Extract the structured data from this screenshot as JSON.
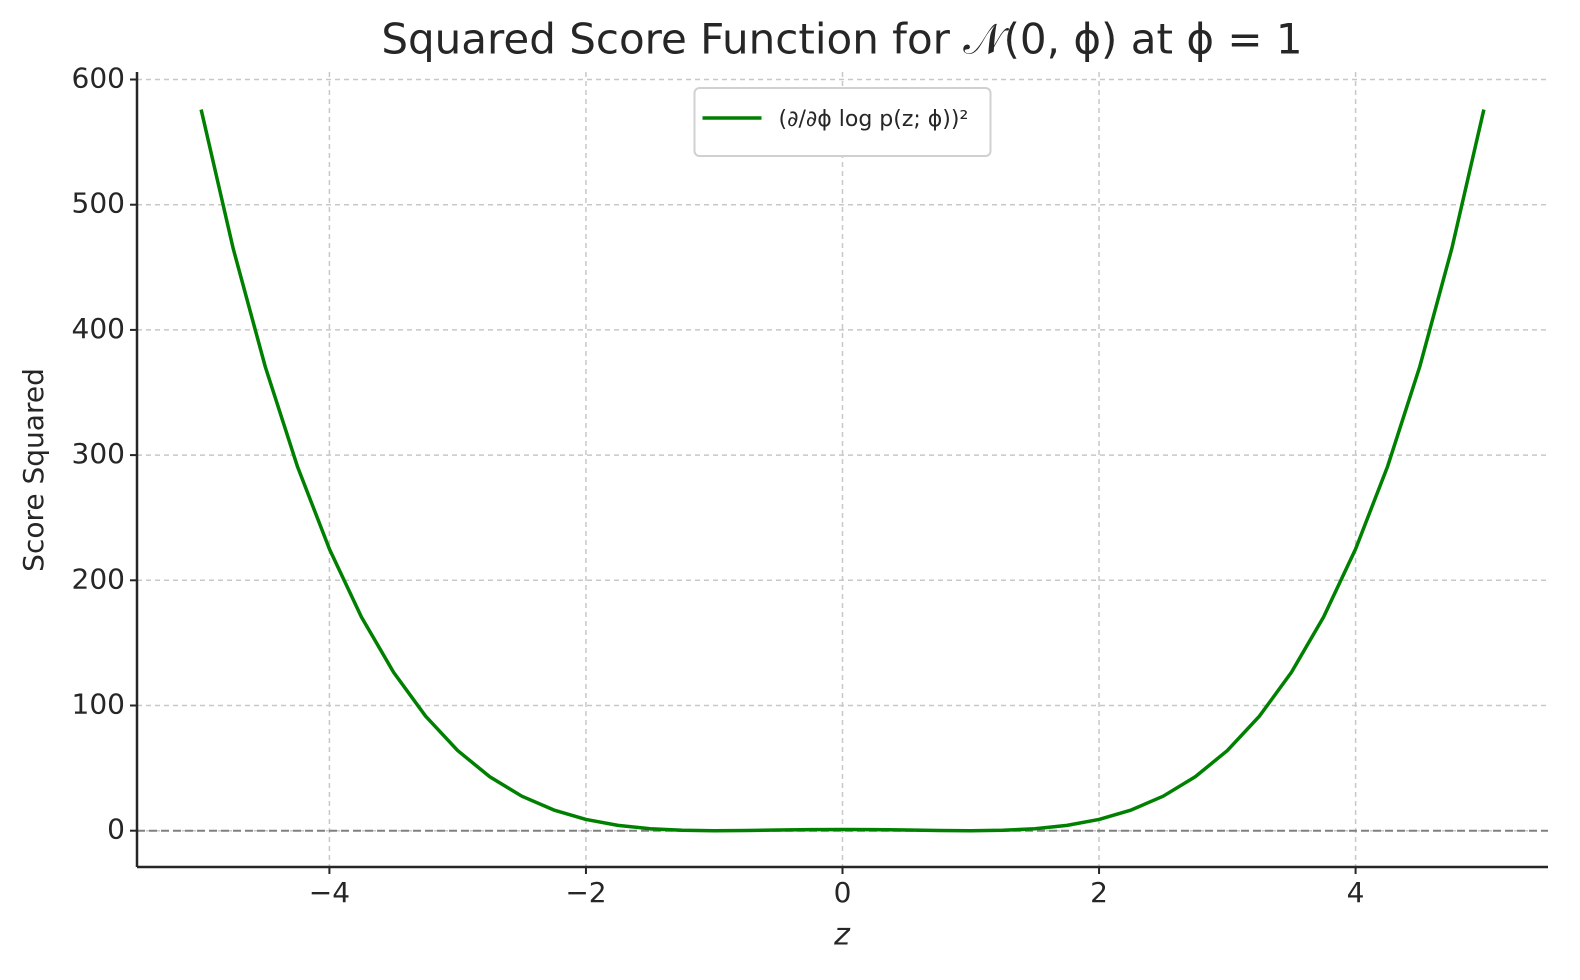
{
  "chart_data": {
    "type": "line",
    "title": "Squared Score Function for 𝒩(0, ϕ) at ϕ = 1",
    "x_label": "z",
    "y_label": "Score Squared",
    "x": [
      -5,
      -4.75,
      -4.5,
      -4.25,
      -4,
      -3.75,
      -3.5,
      -3.25,
      -3,
      -2.75,
      -2.5,
      -2.25,
      -2,
      -1.75,
      -1.5,
      -1.25,
      -1,
      -0.75,
      -0.5,
      -0.25,
      0,
      0.25,
      0.5,
      0.75,
      1,
      1.25,
      1.5,
      1.75,
      2,
      2.25,
      2.5,
      2.75,
      3,
      3.25,
      3.5,
      3.75,
      4,
      4.25,
      4.5,
      4.75,
      5
    ],
    "series": [
      {
        "name": "(∂/∂ϕ log p(z; ϕ))²",
        "color": "#008000",
        "values": [
          576,
          464.94,
          370.56,
          291.13,
          225,
          170.63,
          126.56,
          91.44,
          64,
          43.07,
          27.56,
          16.5,
          9,
          4.25,
          1.56,
          0.32,
          0,
          0.19,
          0.56,
          0.88,
          1,
          0.88,
          0.56,
          0.19,
          0,
          0.32,
          1.56,
          4.25,
          9,
          16.5,
          27.56,
          43.07,
          64,
          91.44,
          126.56,
          170.63,
          225,
          291.13,
          370.56,
          464.94,
          576
        ]
      }
    ],
    "xlim": [
      -5.5,
      5.5
    ],
    "ylim": [
      -29,
      606
    ],
    "xticks": [
      {
        "value": -4,
        "label": "−4"
      },
      {
        "value": -2,
        "label": "−2"
      },
      0,
      2,
      4
    ],
    "yticks": [
      0,
      100,
      200,
      300,
      400,
      500,
      600
    ],
    "hline": 0,
    "grid": true,
    "legend": "upper center"
  }
}
